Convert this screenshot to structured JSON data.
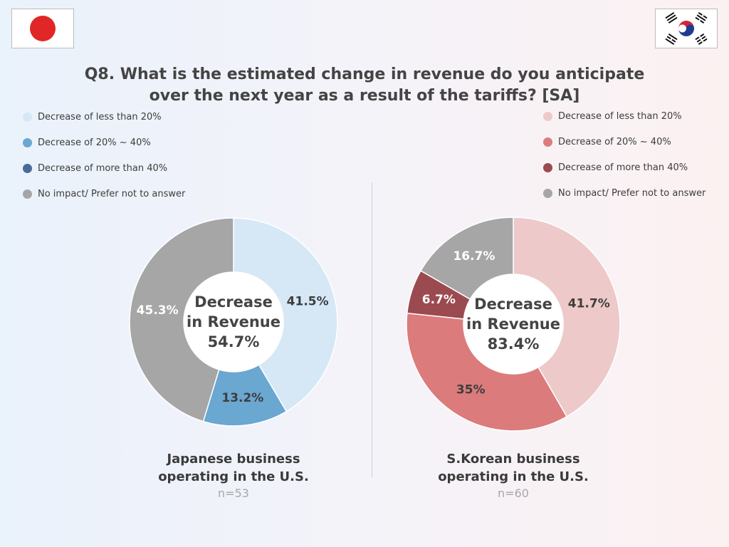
{
  "title_line1": "Q8. What is the estimated change in revenue do you anticipate",
  "title_line2": "over the next year as a result of the tariffs?  [SA]",
  "flags": {
    "japan": "japan-flag-icon",
    "korea": "south-korea-flag-icon"
  },
  "chart_data": [
    {
      "type": "pie",
      "variant": "donut",
      "legend_position": "top-left",
      "categories": [
        "Decrease of less than 20%",
        "Decrease of 20% ~ 40%",
        "Decrease of more than 40%",
        "No impact/ Prefer not to answer"
      ],
      "values": [
        41.5,
        13.2,
        0,
        45.3
      ],
      "value_labels": [
        "41.5%",
        "13.2%",
        "",
        "45.3%"
      ],
      "colors": [
        "#d6e8f6",
        "#6aa7d1",
        "#4a6a98",
        "#a6a6a6"
      ],
      "label_colors": [
        "#3d3d3d",
        "#3d3d3d",
        "#ffffff",
        "#ffffff"
      ],
      "center_text": [
        "Decrease",
        "in Revenue",
        "54.7%"
      ],
      "caption": [
        "Japanese business",
        "operating in the U.S."
      ],
      "n": "n=53"
    },
    {
      "type": "pie",
      "variant": "donut",
      "legend_position": "top-right",
      "categories": [
        "Decrease of less than 20%",
        "Decrease of 20% ~ 40%",
        "Decrease of more than 40%",
        "No impact/ Prefer not to answer"
      ],
      "values": [
        41.7,
        35,
        6.7,
        16.7
      ],
      "value_labels": [
        "41.7%",
        "35%",
        "6.7%",
        "16.7%"
      ],
      "colors": [
        "#eec9c9",
        "#dc7b7c",
        "#9b4a4f",
        "#a6a6a6"
      ],
      "label_colors": [
        "#3d3d3d",
        "#3d3d3d",
        "#ffffff",
        "#ffffff"
      ],
      "center_text": [
        "Decrease",
        "in Revenue",
        "83.4%"
      ],
      "caption": [
        "S.Korean business",
        "operating in the U.S."
      ],
      "n": "n=60"
    }
  ]
}
